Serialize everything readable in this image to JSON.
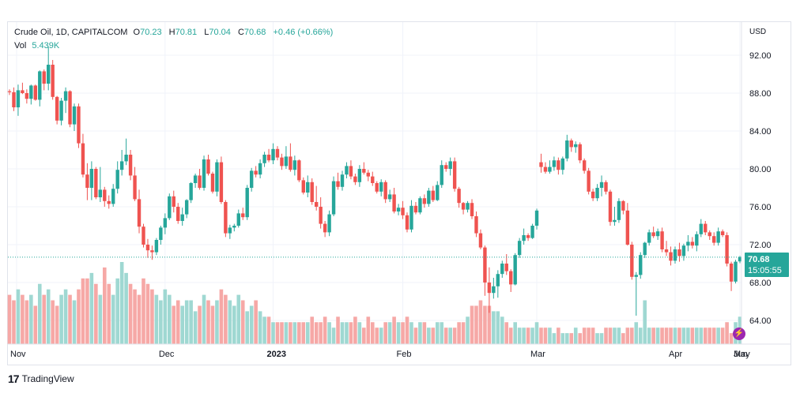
{
  "legend": {
    "symbol": "Crude Oil, 1D, CAPITALCOM",
    "open_label": "O",
    "open": "70.23",
    "high_label": "H",
    "high": "70.81",
    "low_label": "L",
    "low": "70.04",
    "close_label": "C",
    "close": "70.68",
    "change": "+0.46 (+0.66%)",
    "vol_label": "Vol",
    "vol": "5.439K"
  },
  "currency": "USD",
  "last_price": "70.68",
  "countdown": "15:05:55",
  "brand": "TradingView",
  "colors": {
    "up": "#26a69a",
    "down": "#ef5350",
    "up_vol": "#9fd8d2",
    "down_vol": "#f6a8a6",
    "grid": "#f0f3fa",
    "price_line": "#26a69a"
  },
  "chart_data": {
    "type": "candlestick",
    "title": "Crude Oil, 1D, CAPITALCOM",
    "y_axis": {
      "ticks": [
        64,
        68,
        72,
        76,
        80,
        84,
        88,
        92
      ],
      "range": [
        61.5,
        95.5
      ],
      "unit": "USD"
    },
    "x_axis": {
      "labels": [
        "Nov",
        "Dec",
        "2023",
        "Feb",
        "Mar",
        "Apr",
        "May",
        "Jun"
      ]
    },
    "last_close": 70.68,
    "candles": [
      [
        88.2,
        88.4,
        87.8,
        88.1
      ],
      [
        88.1,
        88.6,
        86.1,
        86.5
      ],
      [
        86.5,
        88.9,
        85.6,
        88.3
      ],
      [
        88.3,
        89.1,
        87.9,
        88.0
      ],
      [
        88.0,
        88.4,
        86.9,
        87.4
      ],
      [
        87.4,
        88.9,
        86.8,
        88.8
      ],
      [
        88.8,
        88.9,
        87.2,
        87.3
      ],
      [
        87.3,
        90.4,
        86.6,
        90.3
      ],
      [
        90.3,
        90.5,
        88.3,
        89.0
      ],
      [
        89.0,
        92.9,
        88.3,
        91.0
      ],
      [
        91.0,
        91.5,
        87.3,
        87.6
      ],
      [
        87.6,
        87.7,
        84.7,
        85.1
      ],
      [
        85.1,
        87.5,
        84.6,
        87.2
      ],
      [
        87.2,
        88.6,
        85.9,
        88.2
      ],
      [
        88.2,
        88.3,
        84.4,
        84.7
      ],
      [
        84.7,
        86.9,
        84.0,
        86.6
      ],
      [
        86.6,
        86.9,
        82.2,
        82.7
      ],
      [
        82.7,
        83.7,
        79.1,
        79.4
      ],
      [
        79.4,
        80.6,
        76.7,
        78.0
      ],
      [
        78.0,
        80.8,
        76.7,
        80.0
      ],
      [
        80.0,
        80.2,
        76.8,
        77.0
      ],
      [
        77.0,
        80.2,
        76.5,
        77.8
      ],
      [
        77.8,
        78.1,
        76.0,
        76.6
      ],
      [
        76.6,
        77.2,
        75.8,
        76.3
      ],
      [
        76.3,
        78.4,
        76.0,
        77.9
      ],
      [
        77.9,
        80.8,
        77.4,
        79.9
      ],
      [
        79.9,
        82.0,
        79.3,
        80.8
      ],
      [
        80.8,
        83.2,
        80.4,
        81.5
      ],
      [
        81.5,
        82.0,
        78.8,
        79.3
      ],
      [
        79.3,
        80.2,
        76.6,
        76.8
      ],
      [
        76.8,
        77.8,
        73.2,
        73.9
      ],
      [
        73.9,
        74.2,
        71.7,
        72.0
      ],
      [
        72.0,
        72.6,
        70.6,
        71.4
      ],
      [
        71.4,
        71.9,
        70.4,
        71.2
      ],
      [
        71.2,
        72.7,
        70.9,
        72.5
      ],
      [
        72.5,
        74.0,
        72.0,
        73.8
      ],
      [
        73.8,
        75.3,
        73.1,
        74.8
      ],
      [
        74.8,
        77.4,
        74.6,
        77.1
      ],
      [
        77.1,
        77.7,
        75.4,
        76.0
      ],
      [
        76.0,
        76.4,
        74.2,
        74.5
      ],
      [
        74.5,
        75.9,
        74.0,
        75.2
      ],
      [
        75.2,
        76.8,
        74.8,
        76.7
      ],
      [
        76.7,
        78.6,
        76.4,
        78.5
      ],
      [
        78.5,
        79.5,
        78.0,
        79.3
      ],
      [
        79.3,
        80.0,
        77.8,
        78.0
      ],
      [
        78.0,
        81.4,
        77.7,
        81.0
      ],
      [
        81.0,
        81.5,
        79.3,
        79.5
      ],
      [
        79.5,
        79.7,
        77.4,
        77.6
      ],
      [
        77.6,
        81.0,
        77.1,
        80.7
      ],
      [
        80.7,
        81.3,
        76.3,
        76.5
      ],
      [
        76.5,
        76.7,
        72.8,
        73.2
      ],
      [
        73.2,
        74.1,
        72.6,
        73.8
      ],
      [
        73.8,
        74.2,
        73.4,
        74.0
      ],
      [
        74.0,
        75.7,
        73.8,
        75.3
      ],
      [
        75.3,
        75.9,
        74.6,
        74.9
      ],
      [
        74.9,
        78.3,
        74.6,
        78.0
      ],
      [
        78.0,
        80.1,
        77.6,
        79.8
      ],
      [
        79.8,
        80.3,
        79.1,
        79.4
      ],
      [
        79.4,
        81.0,
        79.0,
        80.6
      ],
      [
        80.6,
        81.8,
        80.2,
        81.5
      ],
      [
        81.5,
        82.1,
        80.7,
        80.9
      ],
      [
        80.9,
        82.7,
        80.5,
        82.1
      ],
      [
        82.1,
        82.4,
        80.9,
        81.2
      ],
      [
        81.2,
        81.6,
        79.9,
        80.3
      ],
      [
        80.3,
        82.4,
        80.0,
        81.3
      ],
      [
        81.3,
        82.7,
        79.7,
        79.9
      ],
      [
        79.9,
        81.4,
        79.3,
        80.9
      ],
      [
        80.9,
        81.0,
        78.6,
        78.8
      ],
      [
        78.8,
        79.1,
        77.3,
        77.5
      ],
      [
        77.5,
        79.3,
        77.0,
        78.6
      ],
      [
        78.6,
        79.0,
        76.2,
        76.5
      ],
      [
        76.5,
        78.2,
        75.6,
        76.0
      ],
      [
        76.0,
        77.0,
        73.7,
        74.2
      ],
      [
        74.2,
        74.5,
        72.8,
        73.3
      ],
      [
        73.3,
        75.6,
        72.9,
        75.2
      ],
      [
        75.2,
        79.2,
        75.0,
        78.7
      ],
      [
        78.7,
        79.6,
        77.8,
        78.1
      ],
      [
        78.1,
        79.8,
        77.7,
        79.4
      ],
      [
        79.4,
        80.7,
        79.0,
        80.3
      ],
      [
        80.3,
        80.9,
        78.9,
        79.2
      ],
      [
        79.2,
        79.5,
        78.3,
        78.6
      ],
      [
        78.6,
        80.4,
        78.1,
        80.0
      ],
      [
        80.0,
        80.7,
        79.4,
        79.6
      ],
      [
        79.6,
        79.9,
        78.7,
        79.2
      ],
      [
        79.2,
        79.7,
        78.2,
        78.5
      ],
      [
        78.5,
        78.7,
        77.4,
        77.6
      ],
      [
        77.6,
        78.9,
        77.1,
        78.6
      ],
      [
        78.6,
        78.8,
        76.4,
        76.8
      ],
      [
        76.8,
        77.8,
        76.5,
        77.3
      ],
      [
        77.3,
        78.0,
        75.3,
        75.5
      ],
      [
        75.5,
        76.3,
        75.1,
        75.9
      ],
      [
        75.9,
        76.6,
        74.7,
        75.1
      ],
      [
        75.1,
        75.4,
        73.3,
        73.6
      ],
      [
        73.6,
        76.7,
        73.3,
        76.1
      ],
      [
        76.1,
        76.5,
        75.2,
        75.4
      ],
      [
        75.4,
        77.1,
        75.2,
        76.9
      ],
      [
        76.9,
        77.3,
        75.9,
        76.3
      ],
      [
        76.3,
        78.0,
        76.0,
        77.7
      ],
      [
        77.7,
        78.2,
        76.5,
        76.7
      ],
      [
        76.7,
        78.7,
        76.6,
        78.3
      ],
      [
        78.3,
        80.9,
        78.0,
        80.4
      ],
      [
        80.4,
        80.7,
        79.7,
        80.0
      ],
      [
        80.0,
        81.2,
        79.3,
        80.8
      ],
      [
        80.8,
        81.2,
        77.6,
        77.9
      ],
      [
        77.9,
        78.1,
        75.9,
        76.4
      ],
      [
        76.4,
        76.5,
        75.2,
        75.7
      ],
      [
        75.7,
        76.6,
        75.4,
        76.4
      ],
      [
        76.4,
        76.8,
        74.7,
        75.0
      ],
      [
        75.0,
        75.5,
        72.8,
        73.2
      ],
      [
        73.2,
        73.6,
        71.5,
        71.7
      ],
      [
        71.7,
        71.9,
        66.6,
        68.0
      ],
      [
        68.0,
        69.6,
        64.8,
        66.9
      ],
      [
        66.9,
        68.5,
        66.3,
        67.6
      ],
      [
        67.6,
        69.3,
        66.4,
        68.9
      ],
      [
        68.9,
        70.3,
        68.5,
        70.0
      ],
      [
        70.0,
        71.0,
        68.8,
        69.2
      ],
      [
        69.2,
        69.4,
        67.0,
        67.8
      ],
      [
        67.8,
        71.1,
        67.7,
        70.9
      ],
      [
        70.9,
        72.7,
        70.6,
        72.4
      ],
      [
        72.4,
        73.7,
        72.0,
        73.0
      ],
      [
        73.0,
        73.2,
        72.4,
        72.7
      ],
      [
        72.7,
        74.2,
        72.6,
        74.0
      ],
      [
        74.0,
        75.8,
        73.6,
        75.6
      ],
      [
        80.7,
        81.6,
        79.6,
        80.2
      ],
      [
        80.2,
        80.7,
        79.5,
        79.7
      ],
      [
        79.7,
        80.9,
        79.5,
        80.2
      ],
      [
        80.2,
        81.3,
        79.8,
        80.9
      ],
      [
        80.9,
        81.2,
        79.4,
        79.9
      ],
      [
        79.9,
        81.3,
        79.4,
        81.1
      ],
      [
        81.1,
        83.6,
        80.8,
        83.0
      ],
      [
        83.0,
        83.2,
        81.8,
        82.3
      ],
      [
        82.3,
        82.9,
        81.7,
        82.6
      ],
      [
        82.6,
        82.8,
        80.6,
        80.9
      ],
      [
        80.9,
        81.1,
        79.5,
        79.8
      ],
      [
        79.8,
        80.1,
        77.3,
        77.6
      ],
      [
        77.6,
        77.9,
        76.6,
        76.9
      ],
      [
        76.9,
        78.4,
        76.6,
        78.0
      ],
      [
        78.0,
        79.3,
        77.1,
        78.6
      ],
      [
        78.6,
        78.8,
        77.3,
        77.6
      ],
      [
        77.6,
        77.8,
        74.0,
        74.4
      ],
      [
        74.4,
        76.0,
        74.0,
        74.6
      ],
      [
        74.6,
        76.9,
        74.3,
        76.6
      ],
      [
        76.6,
        76.7,
        75.2,
        75.6
      ],
      [
        75.6,
        76.4,
        71.9,
        72.0
      ],
      [
        72.0,
        72.3,
        68.3,
        68.6
      ],
      [
        68.6,
        69.1,
        64.5,
        68.8
      ],
      [
        68.8,
        71.2,
        68.4,
        70.9
      ],
      [
        70.9,
        72.3,
        70.6,
        72.2
      ],
      [
        72.2,
        73.6,
        71.9,
        73.3
      ],
      [
        73.3,
        73.9,
        72.7,
        72.9
      ],
      [
        72.9,
        73.7,
        72.5,
        73.4
      ],
      [
        73.4,
        73.8,
        71.2,
        71.5
      ],
      [
        71.5,
        72.4,
        70.8,
        71.2
      ],
      [
        71.2,
        71.8,
        69.8,
        70.3
      ],
      [
        70.3,
        71.8,
        70.0,
        71.5
      ],
      [
        71.5,
        72.2,
        70.2,
        70.8
      ],
      [
        70.8,
        72.1,
        70.3,
        71.9
      ],
      [
        71.9,
        73.0,
        71.3,
        72.3
      ],
      [
        72.3,
        72.8,
        71.6,
        71.9
      ],
      [
        71.9,
        73.4,
        71.3,
        73.1
      ],
      [
        73.1,
        74.7,
        72.8,
        74.2
      ],
      [
        74.2,
        74.5,
        73.0,
        73.3
      ],
      [
        73.3,
        73.5,
        72.5,
        72.9
      ],
      [
        72.9,
        73.3,
        71.9,
        72.2
      ],
      [
        72.2,
        73.8,
        71.9,
        73.4
      ],
      [
        73.4,
        73.6,
        72.8,
        73.0
      ],
      [
        73.0,
        73.3,
        69.7,
        70.0
      ],
      [
        70.0,
        70.2,
        67.1,
        68.1
      ],
      [
        68.1,
        70.4,
        67.9,
        70.2
      ],
      [
        70.23,
        70.81,
        70.04,
        70.68
      ]
    ],
    "volume": [
      9,
      8,
      10,
      9,
      8,
      9,
      7,
      11,
      9,
      10,
      8,
      7,
      9,
      10,
      9,
      8,
      10,
      12,
      12,
      13,
      11,
      9,
      14,
      11,
      9,
      12,
      15,
      13,
      11,
      10,
      9,
      12,
      11,
      10,
      9,
      8,
      10,
      9,
      7,
      8,
      7,
      8,
      8,
      6,
      7,
      9,
      8,
      7,
      8,
      10,
      9,
      8,
      7,
      9,
      8,
      6,
      7,
      8,
      6,
      5,
      5,
      4,
      4,
      4,
      4,
      4,
      4,
      4,
      4,
      4,
      5,
      4,
      4,
      5,
      4,
      3,
      5,
      4,
      4,
      4,
      5,
      4,
      3,
      5,
      4,
      3,
      3,
      4,
      4,
      5,
      4,
      4,
      5,
      4,
      3,
      4,
      4,
      3,
      3,
      4,
      4,
      3,
      3,
      3,
      4,
      4,
      5,
      7,
      7,
      8,
      7,
      7,
      6,
      6,
      5,
      4,
      3,
      4,
      3,
      3,
      3,
      3,
      4,
      3,
      3,
      3,
      2,
      3,
      2,
      2,
      2,
      3,
      2,
      3,
      3,
      3,
      2,
      2,
      3,
      3,
      3,
      3,
      2,
      3,
      3,
      4,
      3,
      8,
      3,
      3,
      3,
      3,
      3,
      3,
      3,
      3,
      3,
      3,
      3,
      3,
      3,
      3,
      3,
      3,
      3,
      3,
      4,
      2,
      4,
      5
    ]
  }
}
